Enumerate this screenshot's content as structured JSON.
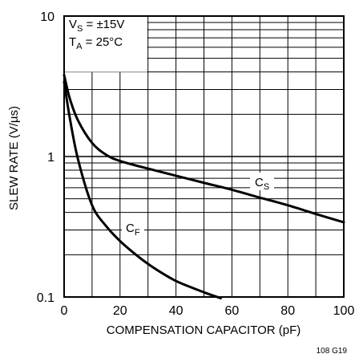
{
  "chart_data": {
    "type": "line",
    "title": "",
    "xlabel": "COMPENSATION CAPACITOR (pF)",
    "ylabel": "SLEW RATE (V/µs)",
    "xlim": [
      0,
      100
    ],
    "ylim": [
      0.1,
      10
    ],
    "y_scale": "log",
    "grid": true,
    "x_ticks": [
      "0",
      "20",
      "40",
      "60",
      "80",
      "100"
    ],
    "y_ticks": [
      "0.1",
      "1",
      "10"
    ],
    "conditions": {
      "vs_main": "V",
      "vs_sub": "S",
      "vs_rest": " = ±15V",
      "ta_main": "T",
      "ta_sub": "A",
      "ta_rest": " = 25°C"
    },
    "series": [
      {
        "name": "CS",
        "label_main": "C",
        "label_sub": "S",
        "x": [
          0,
          2,
          5,
          10,
          15,
          20,
          30,
          40,
          50,
          60,
          70,
          80,
          90,
          100
        ],
        "y": [
          3.8,
          2.6,
          1.8,
          1.25,
          1.03,
          0.93,
          0.82,
          0.73,
          0.65,
          0.58,
          0.51,
          0.45,
          0.39,
          0.34
        ]
      },
      {
        "name": "CF",
        "label_main": "C",
        "label_sub": "F",
        "x": [
          0,
          2,
          5,
          10,
          15,
          20,
          25,
          30,
          35,
          40,
          45,
          50,
          56
        ],
        "y": [
          3.4,
          1.9,
          0.95,
          0.45,
          0.32,
          0.25,
          0.205,
          0.172,
          0.148,
          0.13,
          0.118,
          0.108,
          0.098
        ]
      }
    ],
    "figure_id": "108 G19"
  }
}
